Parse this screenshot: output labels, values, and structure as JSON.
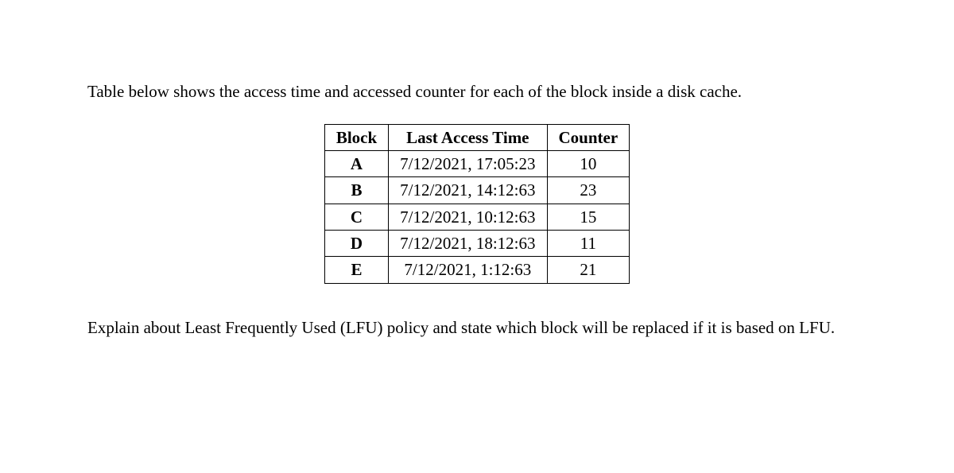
{
  "intro": "Table below shows the access time and accessed counter for each of the block inside a disk cache.",
  "table": {
    "type": "table",
    "columns": [
      "Block",
      "Last Access Time",
      "Counter"
    ],
    "rows": [
      [
        "A",
        "7/12/2021, 17:05:23",
        "10"
      ],
      [
        "B",
        "7/12/2021, 14:12:63",
        "23"
      ],
      [
        "C",
        "7/12/2021, 10:12:63",
        "15"
      ],
      [
        "D",
        "7/12/2021, 18:12:63",
        "11"
      ],
      [
        "E",
        "7/12/2021, 1:12:63",
        "21"
      ]
    ],
    "border_color": "#000000",
    "background_color": "#ffffff",
    "text_color": "#000000",
    "font_family": "Times New Roman",
    "font_size_pt": 16,
    "header_font_weight": "bold",
    "block_column_font_weight": "bold",
    "cell_alignment": "center"
  },
  "conclusion": "Explain about Least Frequently Used (LFU) policy and state which block will be replaced if it is based on LFU."
}
